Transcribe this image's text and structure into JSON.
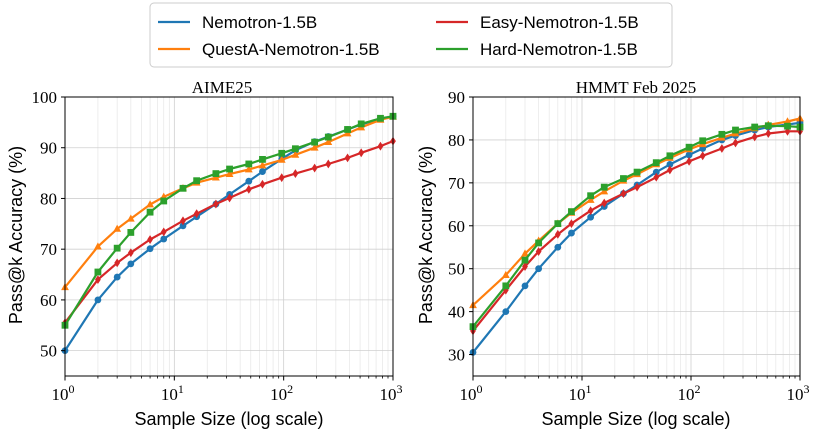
{
  "legend": {
    "entries": [
      {
        "name": "Nemotron-1.5B",
        "color": "#1f77b4",
        "marker": "circle"
      },
      {
        "name": "QuestA-Nemotron-1.5B",
        "color": "#ff7f0e",
        "marker": "triangle"
      },
      {
        "name": "Easy-Nemotron-1.5B",
        "color": "#d62728",
        "marker": "diamond"
      },
      {
        "name": "Hard-Nemotron-1.5B",
        "color": "#2ca02c",
        "marker": "square"
      }
    ]
  },
  "chart_data": [
    {
      "type": "line",
      "title": "AIME25",
      "xlabel": "Sample Size (log scale)",
      "ylabel": "Pass@k Accuracy (%)",
      "xscale": "log",
      "xlim": [
        1,
        1000
      ],
      "ylim": [
        45,
        100
      ],
      "yticks": [
        50,
        60,
        70,
        80,
        90,
        100
      ],
      "xticks": [
        {
          "value": 1,
          "base": "10",
          "exp": "0"
        },
        {
          "value": 10,
          "base": "10",
          "exp": "1"
        },
        {
          "value": 100,
          "base": "10",
          "exp": "2"
        },
        {
          "value": 1000,
          "base": "10",
          "exp": "3"
        }
      ],
      "grid": true,
      "x": [
        1,
        2,
        3,
        4,
        6,
        8,
        12,
        16,
        24,
        32,
        48,
        64,
        96,
        128,
        192,
        256,
        384,
        512,
        768,
        1000
      ],
      "series": [
        {
          "name": "Nemotron-1.5B",
          "values": [
            50.0,
            60.0,
            64.5,
            67.1,
            70.1,
            72.0,
            74.6,
            76.4,
            78.9,
            80.8,
            83.4,
            85.3,
            87.8,
            89.5,
            91.2,
            92.2,
            93.6,
            94.6,
            95.7,
            96.2
          ]
        },
        {
          "name": "QuestA-Nemotron-1.5B",
          "values": [
            62.5,
            70.5,
            74.0,
            76.0,
            78.8,
            80.3,
            82.0,
            83.1,
            84.1,
            84.8,
            85.7,
            86.5,
            87.6,
            88.6,
            90.0,
            91.1,
            92.8,
            94.0,
            95.5,
            96.1
          ]
        },
        {
          "name": "Easy-Nemotron-1.5B",
          "values": [
            55.5,
            64.0,
            67.3,
            69.3,
            71.9,
            73.4,
            75.6,
            77.0,
            78.9,
            80.1,
            81.8,
            82.8,
            84.1,
            84.9,
            86.0,
            86.8,
            88.0,
            89.0,
            90.3,
            91.3
          ]
        },
        {
          "name": "Hard-Nemotron-1.5B",
          "values": [
            55.0,
            65.5,
            70.2,
            73.3,
            77.3,
            79.5,
            82.0,
            83.5,
            84.9,
            85.8,
            86.8,
            87.7,
            88.9,
            89.8,
            91.1,
            92.1,
            93.6,
            94.7,
            95.8,
            96.2
          ]
        }
      ]
    },
    {
      "type": "line",
      "title": "HMMT Feb 2025",
      "xlabel": "Sample Size (log scale)",
      "ylabel": "Pass@k Accuracy (%)",
      "xscale": "log",
      "xlim": [
        1,
        1000
      ],
      "ylim": [
        25,
        90
      ],
      "yticks": [
        30,
        40,
        50,
        60,
        70,
        80,
        90
      ],
      "xticks": [
        {
          "value": 1,
          "base": "10",
          "exp": "0"
        },
        {
          "value": 10,
          "base": "10",
          "exp": "1"
        },
        {
          "value": 100,
          "base": "10",
          "exp": "2"
        },
        {
          "value": 1000,
          "base": "10",
          "exp": "3"
        }
      ],
      "grid": true,
      "x": [
        1,
        2,
        3,
        4,
        6,
        8,
        12,
        16,
        24,
        32,
        48,
        64,
        96,
        128,
        192,
        256,
        384,
        512,
        768,
        1000
      ],
      "series": [
        {
          "name": "Nemotron-1.5B",
          "values": [
            30.5,
            40.0,
            46.0,
            50.0,
            55.0,
            58.3,
            62.0,
            64.5,
            67.5,
            69.5,
            72.5,
            74.3,
            76.5,
            78.0,
            80.0,
            81.0,
            82.3,
            83.0,
            83.6,
            84.0
          ]
        },
        {
          "name": "QuestA-Nemotron-1.5B",
          "values": [
            41.5,
            48.5,
            53.5,
            56.5,
            60.5,
            63.0,
            66.0,
            68.0,
            70.5,
            72.0,
            74.3,
            75.8,
            77.8,
            79.0,
            80.5,
            81.5,
            82.7,
            83.5,
            84.3,
            85.0
          ]
        },
        {
          "name": "Easy-Nemotron-1.5B",
          "values": [
            35.5,
            45.0,
            50.5,
            54.0,
            58.0,
            60.5,
            63.5,
            65.3,
            67.5,
            69.0,
            71.3,
            73.0,
            75.0,
            76.3,
            78.0,
            79.3,
            80.7,
            81.5,
            82.0,
            82.0
          ]
        },
        {
          "name": "Hard-Nemotron-1.5B",
          "values": [
            36.5,
            46.0,
            52.0,
            56.0,
            60.5,
            63.3,
            67.0,
            69.0,
            71.0,
            72.5,
            74.7,
            76.3,
            78.3,
            79.8,
            81.3,
            82.3,
            83.0,
            83.3,
            83.2,
            83.0
          ]
        }
      ]
    }
  ]
}
